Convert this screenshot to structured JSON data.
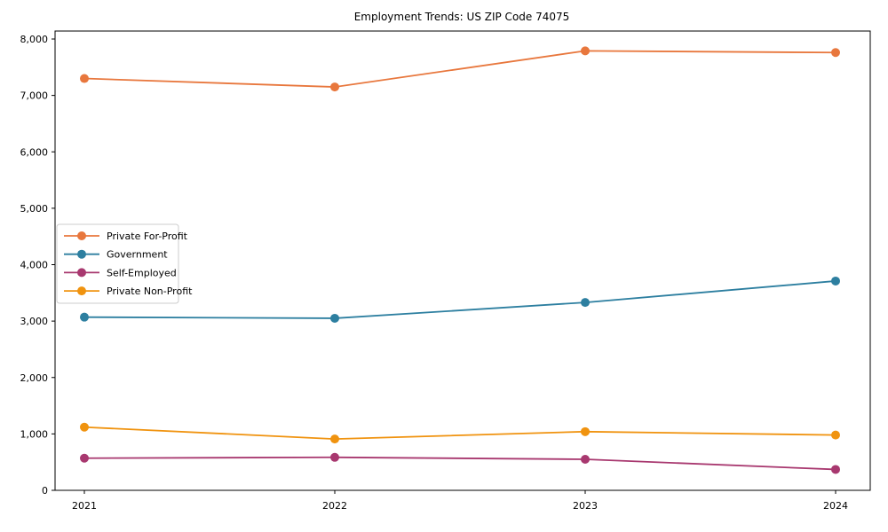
{
  "chart_data": {
    "type": "line",
    "title": "Employment Trends: US ZIP Code 74075",
    "x": [
      "2021",
      "2022",
      "2023",
      "2024"
    ],
    "series": [
      {
        "name": "Private For-Profit",
        "color": "#e8773d",
        "values": [
          7300,
          7150,
          7790,
          7760
        ]
      },
      {
        "name": "Government",
        "color": "#2d7fa0",
        "values": [
          3070,
          3050,
          3330,
          3710
        ]
      },
      {
        "name": "Self-Employed",
        "color": "#a8386f",
        "values": [
          570,
          585,
          550,
          370
        ]
      },
      {
        "name": "Private Non-Profit",
        "color": "#f0930f",
        "values": [
          1120,
          910,
          1040,
          980
        ]
      }
    ],
    "xlabel": "",
    "ylabel": "",
    "ylim": [
      0,
      8000
    ],
    "yticks": [
      0,
      1000,
      2000,
      3000,
      4000,
      5000,
      6000,
      7000,
      8000
    ],
    "ytick_labels": [
      "0",
      "1,000",
      "2,000",
      "3,000",
      "4,000",
      "5,000",
      "6,000",
      "7,000",
      "8,000"
    ],
    "grid": false,
    "legend_position": "center-left",
    "marker": "circle",
    "axis_color": "#000000",
    "legend_border_color": "#cccccc",
    "legend_background": "#ffffff"
  }
}
